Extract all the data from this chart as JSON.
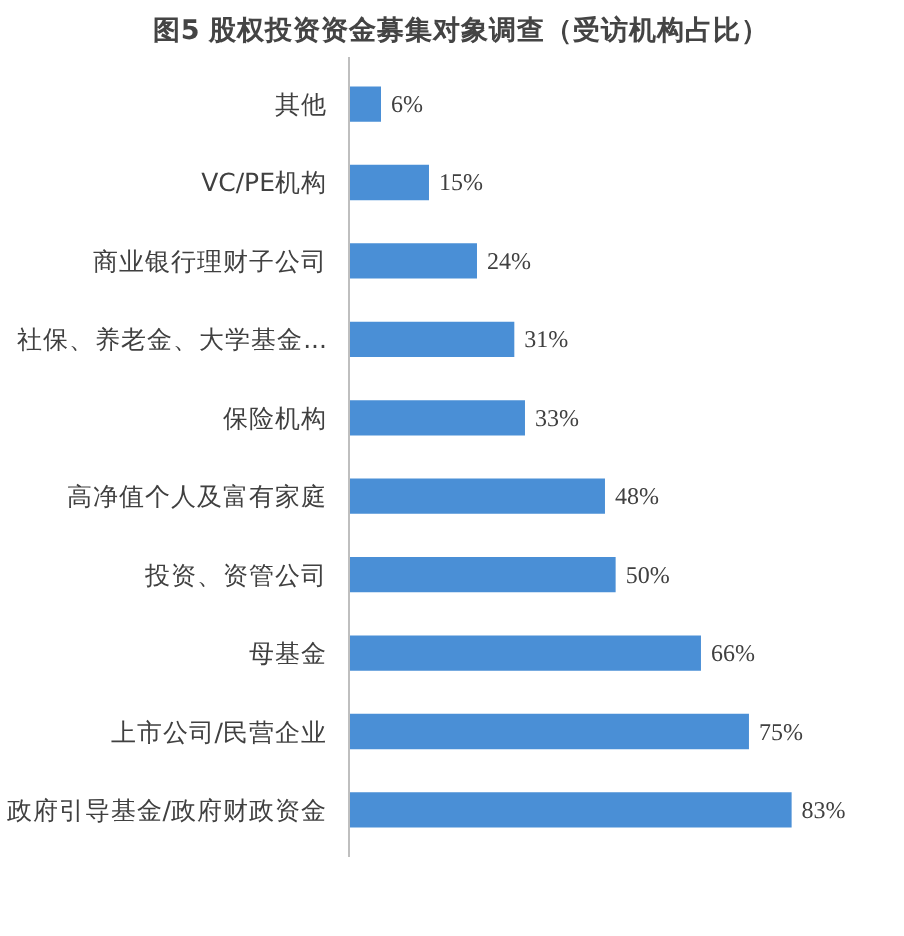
{
  "chart_data": {
    "type": "bar",
    "orientation": "horizontal",
    "title": "图5 股权投资资金募集对象调查（受访机构占比）",
    "categories": [
      "其他",
      "VC/PE机构",
      "商业银行理财子公司",
      "社保、养老金、大学基金...",
      "保险机构",
      "高净值个人及富有家庭",
      "投资、资管公司",
      "母基金",
      "上市公司/民营企业",
      "政府引导基金/政府财政资金"
    ],
    "values": [
      6,
      15,
      24,
      31,
      33,
      48,
      50,
      66,
      75,
      83
    ],
    "value_labels": [
      "6%",
      "15%",
      "24%",
      "31%",
      "33%",
      "48%",
      "50%",
      "66%",
      "75%",
      "83%"
    ],
    "color": "#4a8fd6"
  }
}
